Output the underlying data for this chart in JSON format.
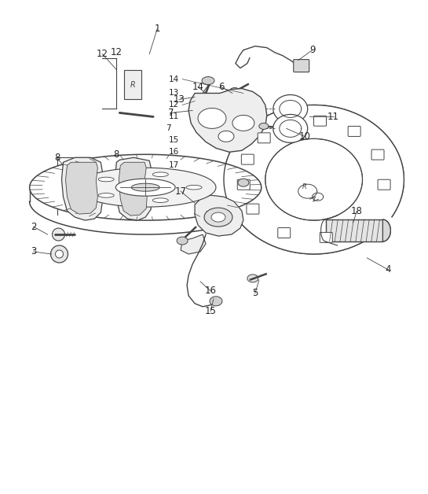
{
  "background_color": "#ffffff",
  "line_color": "#444444",
  "label_color": "#333333",
  "figsize": [
    5.45,
    6.28
  ],
  "dpi": 100,
  "xlim": [
    0,
    545
  ],
  "ylim": [
    0,
    628
  ]
}
